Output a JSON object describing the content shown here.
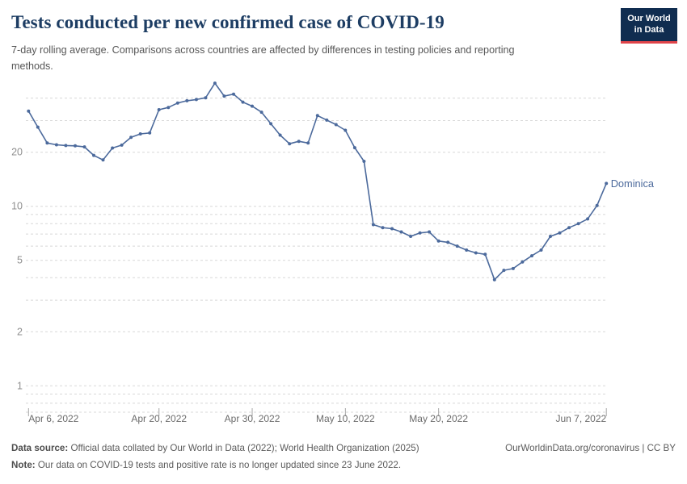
{
  "header": {
    "title": "Tests conducted per new confirmed case of COVID-19",
    "subtitle": "7-day rolling average. Comparisons across countries are affected by differences in testing policies and reporting methods.",
    "logo": {
      "line1": "Our World",
      "line2": "in Data",
      "bg_color": "#102d50",
      "accent_color": "#e0444a"
    }
  },
  "chart_data": {
    "type": "line",
    "title": "Tests conducted per new confirmed case of COVID-19",
    "y_scale": "log",
    "grid": "dashed",
    "x_start_date": "Apr 6, 2022",
    "x_end_date": "Jun 7, 2022",
    "x_cadence": "daily",
    "series": [
      {
        "name": "Dominica",
        "color": "#4C6A9C",
        "values": [
          33.9,
          27.6,
          22.5,
          22.0,
          21.8,
          21.7,
          21.4,
          19.2,
          18.1,
          21.1,
          21.9,
          24.2,
          25.3,
          25.6,
          34.5,
          35.5,
          37.6,
          38.7,
          39.3,
          40.2,
          48.5,
          41.1,
          42.1,
          38.0,
          36.1,
          33.4,
          28.8,
          24.9,
          22.3,
          23.0,
          22.5,
          32.0,
          30.2,
          28.5,
          26.5,
          21.2,
          17.8,
          7.9,
          7.6,
          7.5,
          7.2,
          6.8,
          7.1,
          7.2,
          6.4,
          6.3,
          6.0,
          5.7,
          5.5,
          5.4,
          3.9,
          4.4,
          4.5,
          4.9,
          5.3,
          5.7,
          6.8,
          7.1,
          7.6,
          8.0,
          8.5,
          10.1,
          13.4
        ]
      }
    ],
    "x_ticks": [
      {
        "label": "Apr 6, 2022",
        "index": 0,
        "align": "start"
      },
      {
        "label": "Apr 20, 2022",
        "index": 14,
        "align": "middle"
      },
      {
        "label": "Apr 30, 2022",
        "index": 24,
        "align": "middle"
      },
      {
        "label": "May 10, 2022",
        "index": 34,
        "align": "middle"
      },
      {
        "label": "May 20, 2022",
        "index": 44,
        "align": "middle"
      },
      {
        "label": "Jun 7, 2022",
        "index": 62,
        "align": "end"
      }
    ],
    "y_tick_labels": [
      20,
      10,
      5,
      2,
      1
    ],
    "y_gridlines": [
      40,
      30,
      20,
      10,
      9,
      8,
      7,
      6,
      5,
      4,
      3,
      2,
      1,
      0.9,
      0.8
    ],
    "ylim": [
      0.75,
      50
    ],
    "legend_position": "end-of-line-label",
    "colors": {
      "gridline": "#d8d8d8",
      "y_label": "#8f8f8f",
      "x_label": "#6c6c6c",
      "tick": "#a6a6a6"
    }
  },
  "footer": {
    "data_source_label": "Data source:",
    "data_source_text": "Official data collated by Our World in Data (2022); World Health Organization (2025)",
    "link_text": "OurWorldinData.org/coronavirus | CC BY",
    "note_label": "Note:",
    "note_text": "Our data on COVID-19 tests and positive rate is no longer updated since 23 June 2022."
  }
}
